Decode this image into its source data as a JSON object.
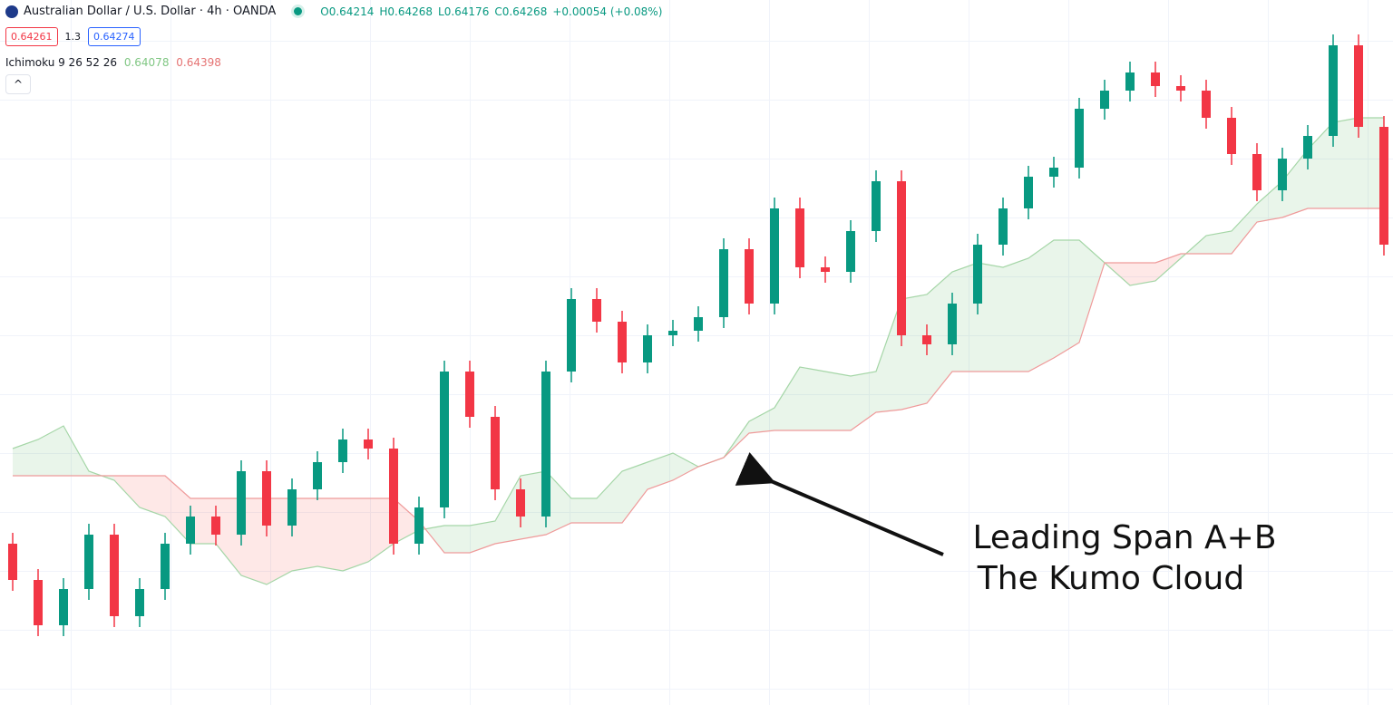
{
  "header": {
    "symbol": "Australian Dollar / U.S. Dollar · 4h · OANDA",
    "open": "O0.64214",
    "high": "H0.64268",
    "low": "L0.64176",
    "close": "C0.64268",
    "change": "+0.00054 (+0.08%)",
    "bid": "0.64261",
    "spread": "1.3",
    "ask": "0.64274",
    "indicator": "Ichimoku 9 26 52 26",
    "indicator_a": "0.64078",
    "indicator_b": "0.64398"
  },
  "chart_data": {
    "type": "candlestick",
    "ylim": [
      0.63513,
      0.6468
    ],
    "up_color": "#089981",
    "down_color": "#f23645",
    "open": [
      0.6378,
      0.6372,
      0.63645,
      0.63705,
      0.63795,
      0.6366,
      0.63705,
      0.6378,
      0.63825,
      0.63795,
      0.639,
      0.6381,
      0.6387,
      0.63915,
      0.639525,
      0.639375,
      0.6378,
      0.6384,
      0.64065,
      0.6399,
      0.6387,
      0.63825,
      0.64065,
      0.64185,
      0.641475,
      0.6408,
      0.64125,
      0.641325,
      0.64155,
      0.642675,
      0.641775,
      0.64335,
      0.642375,
      0.6423,
      0.642975,
      0.6438,
      0.64125,
      0.6411,
      0.641775,
      0.64275,
      0.64335,
      0.643875,
      0.644025,
      0.645,
      0.6453,
      0.6456,
      0.645375,
      0.6453,
      0.64485,
      0.64425,
      0.64365,
      0.644175,
      0.64455,
      0.64605,
      0.6447
    ],
    "high": [
      0.63798,
      0.63738,
      0.63723,
      0.63813,
      0.63813,
      0.63723,
      0.63798,
      0.63843,
      0.63843,
      0.63918,
      0.63918,
      0.63888,
      0.63933,
      0.639705,
      0.639705,
      0.639555,
      0.63858,
      0.64083,
      0.64083,
      0.64008,
      0.63888,
      0.64083,
      0.64203,
      0.64203,
      0.641655,
      0.64143,
      0.641505,
      0.64173,
      0.642855,
      0.642855,
      0.64353,
      0.64353,
      0.642555,
      0.643155,
      0.64398,
      0.64398,
      0.64143,
      0.641955,
      0.64293,
      0.64353,
      0.644055,
      0.644205,
      0.64518,
      0.64548,
      0.64578,
      0.64578,
      0.645555,
      0.64548,
      0.64503,
      0.64443,
      0.644355,
      0.64473,
      0.64623,
      0.64623,
      0.64488
    ],
    "low": [
      0.63702,
      0.63627,
      0.63627,
      0.63687,
      0.63642,
      0.63642,
      0.63687,
      0.63762,
      0.63777,
      0.63777,
      0.63792,
      0.63792,
      0.63852,
      0.63897,
      0.639195,
      0.63762,
      0.63762,
      0.63822,
      0.63972,
      0.63852,
      0.63807,
      0.63807,
      0.64047,
      0.641295,
      0.64062,
      0.64062,
      0.64107,
      0.641145,
      0.64137,
      0.641595,
      0.641595,
      0.642195,
      0.64212,
      0.64212,
      0.642795,
      0.64107,
      0.64092,
      0.64092,
      0.641595,
      0.64257,
      0.64317,
      0.643695,
      0.643845,
      0.64482,
      0.64512,
      0.645195,
      0.64512,
      0.64467,
      0.64407,
      0.64347,
      0.64347,
      0.643995,
      0.64437,
      0.64452,
      0.64257
    ],
    "close": [
      0.6372,
      0.63645,
      0.63705,
      0.63795,
      0.6366,
      0.63705,
      0.6378,
      0.63825,
      0.63795,
      0.639,
      0.6381,
      0.6387,
      0.63915,
      0.639525,
      0.639375,
      0.6378,
      0.6384,
      0.64065,
      0.6399,
      0.6387,
      0.63825,
      0.64065,
      0.64185,
      0.641475,
      0.6408,
      0.64125,
      0.641325,
      0.64155,
      0.642675,
      0.641775,
      0.64335,
      0.642375,
      0.6423,
      0.642975,
      0.6438,
      0.64125,
      0.6411,
      0.641775,
      0.64275,
      0.64335,
      0.643875,
      0.644025,
      0.645,
      0.6453,
      0.6456,
      0.645375,
      0.6453,
      0.64485,
      0.64425,
      0.64365,
      0.644175,
      0.64455,
      0.64605,
      0.6447,
      0.64275
    ],
    "span_a": {
      "color": "#a5d6a7",
      "fill": "rgba(76,175,80,0.12)",
      "values": [
        0.639375,
        0.639525,
        0.63975,
        0.639,
        0.63885,
        0.6384,
        0.63825,
        0.6378,
        0.6378,
        0.637275,
        0.637125,
        0.63735,
        0.637425,
        0.63735,
        0.6375,
        0.6378,
        0.638025,
        0.6381,
        0.6381,
        0.638175,
        0.638925,
        0.639,
        0.63855,
        0.63855,
        0.639,
        0.63915,
        0.6393,
        0.639075,
        0.639225,
        0.639825,
        0.64005,
        0.640725,
        0.64065,
        0.640575,
        0.64065,
        0.64185,
        0.641925,
        0.6423,
        0.64245,
        0.642375,
        0.642525,
        0.642825,
        0.642825,
        0.64245,
        0.642075,
        0.64215,
        0.642525,
        0.6429,
        0.642975,
        0.643425,
        0.6438,
        0.644325,
        0.644775,
        0.64485,
        0.64485
      ]
    },
    "span_b": {
      "color": "#ef9a9a",
      "fill": "rgba(244,67,54,0.12)",
      "values": [
        0.638925,
        0.638925,
        0.638925,
        0.638925,
        0.638925,
        0.638925,
        0.638925,
        0.63855,
        0.63855,
        0.63855,
        0.63855,
        0.63855,
        0.63855,
        0.63855,
        0.63855,
        0.63855,
        0.638175,
        0.63765,
        0.63765,
        0.6378,
        0.637875,
        0.63795,
        0.638145,
        0.638145,
        0.638145,
        0.6387,
        0.63885,
        0.639075,
        0.639225,
        0.63963,
        0.639675,
        0.639675,
        0.639675,
        0.639675,
        0.639975,
        0.64002,
        0.640125,
        0.64065,
        0.64065,
        0.64065,
        0.64065,
        0.640875,
        0.64113,
        0.64245,
        0.64245,
        0.64245,
        0.6426,
        0.6426,
        0.6426,
        0.643125,
        0.6432,
        0.64335,
        0.64335,
        0.64335,
        0.64335
      ]
    },
    "annotation": [
      "Leading Span A+B",
      "The Kumo Cloud"
    ]
  }
}
